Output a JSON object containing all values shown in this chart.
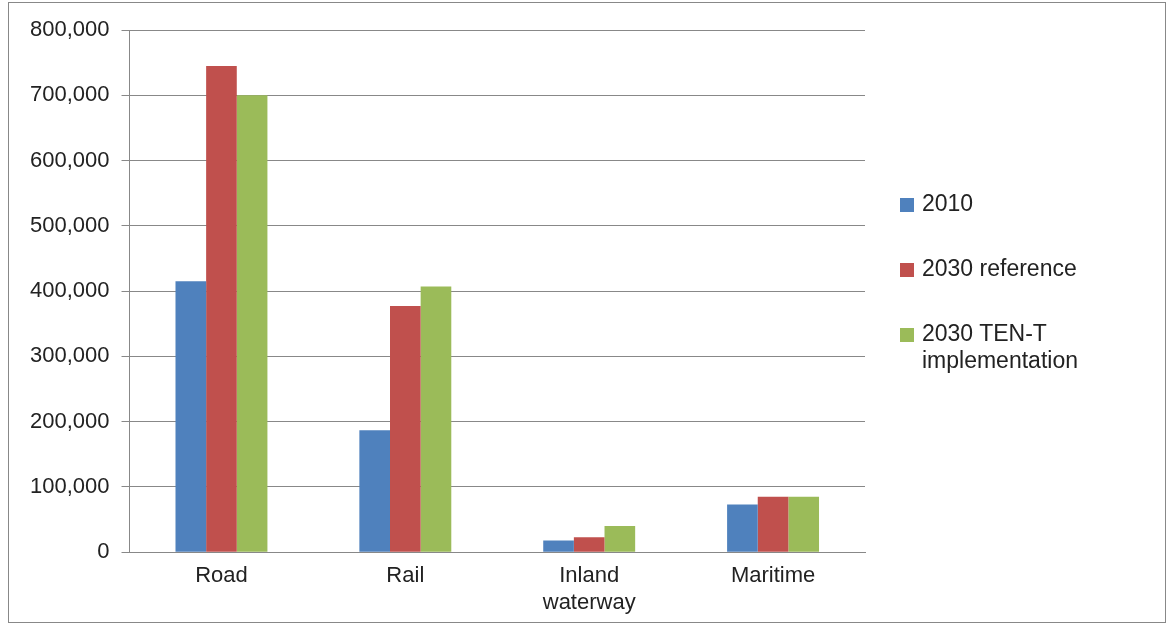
{
  "chart_data": {
    "type": "bar",
    "categories": [
      "Road",
      "Rail",
      "Inland waterway",
      "Maritime"
    ],
    "series": [
      {
        "name": "2010",
        "color": "#4f81bd",
        "values": [
          415000,
          187000,
          18000,
          73000
        ]
      },
      {
        "name": "2030 reference",
        "color": "#c0504d",
        "values": [
          745000,
          377000,
          23000,
          85000
        ]
      },
      {
        "name": "2030 TEN-T implementation",
        "color": "#9bbb59",
        "values": [
          700000,
          407000,
          40000,
          85000
        ]
      }
    ],
    "ylim": [
      0,
      800000
    ],
    "yticks": [
      0,
      {
        "value": 100000,
        "label": "100,000"
      },
      {
        "value": 200000,
        "label": "200,000"
      },
      {
        "value": 300000,
        "label": "300,000"
      },
      {
        "value": 400000,
        "label": "400,000"
      },
      {
        "value": 500000,
        "label": "500,000"
      },
      {
        "value": 600000,
        "label": "600,000"
      },
      {
        "value": 700000,
        "label": "700,000"
      },
      {
        "value": 800000,
        "label": "800,000"
      }
    ],
    "grid": "y",
    "legend": "right"
  }
}
